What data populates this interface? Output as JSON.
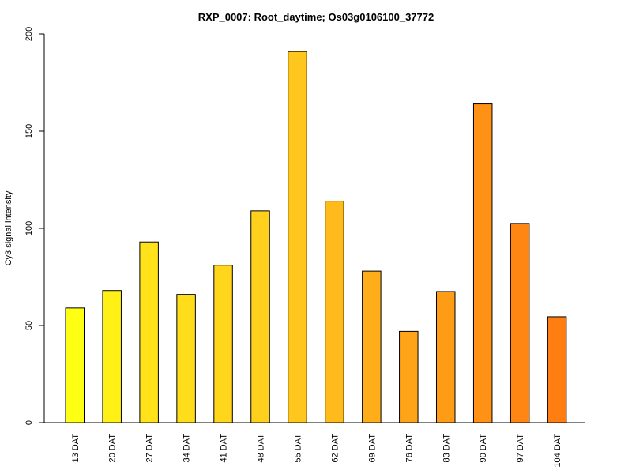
{
  "chart_data": {
    "type": "bar",
    "title": "RXP_0007: Root_daytime; Os03g0106100_37772",
    "xlabel": "",
    "ylabel": "Cy3 signal intensity",
    "ylim": [
      0,
      200
    ],
    "yticks": [
      0,
      50,
      100,
      150,
      200
    ],
    "grid": false,
    "categories": [
      "13 DAT",
      "20 DAT",
      "27 DAT",
      "34 DAT",
      "41 DAT",
      "48 DAT",
      "55 DAT",
      "62 DAT",
      "69 DAT",
      "76 DAT",
      "83 DAT",
      "90 DAT",
      "97 DAT",
      "104 DAT"
    ],
    "values": [
      59,
      68,
      93,
      66,
      81,
      109,
      191,
      114,
      78,
      47,
      67.5,
      164,
      102.5,
      54.5
    ],
    "colors": [
      "#FFFF13",
      "#FFF016",
      "#FFE219",
      "#FFDD1A",
      "#FFD61B",
      "#FFD01C",
      "#FFC61D",
      "#FFBA1C",
      "#FFAE1A",
      "#FFA318",
      "#FF9C16",
      "#FF9214",
      "#FF8612",
      "#FF7E11"
    ]
  }
}
